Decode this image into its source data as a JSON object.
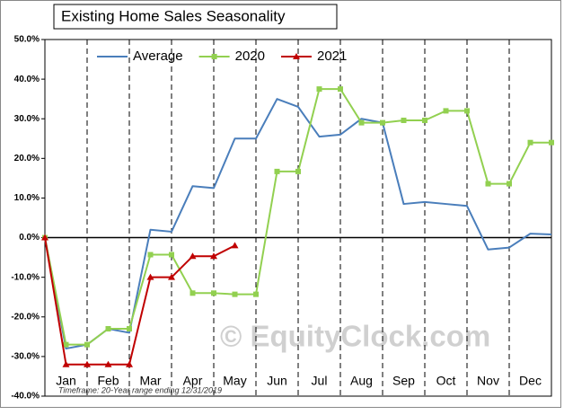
{
  "chart_data": {
    "type": "line",
    "title": "Existing Home Sales Seasonality",
    "annotations": [
      "Timeframe: 20-Year range ending 12/31/2019",
      "© EquityClock.com"
    ],
    "x": [
      0,
      0.5,
      1,
      1.5,
      2,
      2.5,
      3,
      3.5,
      4,
      4.5,
      5,
      5.5,
      6,
      6.5,
      7,
      7.5,
      8,
      8.5,
      9,
      9.5,
      10,
      10.5,
      11,
      11.5,
      12
    ],
    "xlim": [
      0,
      12
    ],
    "xticks": [
      {
        "value": 0.5,
        "label": "Jan"
      },
      {
        "value": 1.5,
        "label": "Feb"
      },
      {
        "value": 2.5,
        "label": "Mar"
      },
      {
        "value": 3.5,
        "label": "Apr"
      },
      {
        "value": 4.5,
        "label": "May"
      },
      {
        "value": 5.5,
        "label": "Jun"
      },
      {
        "value": 6.5,
        "label": "Jul"
      },
      {
        "value": 7.5,
        "label": "Aug"
      },
      {
        "value": 8.5,
        "label": "Sep"
      },
      {
        "value": 9.5,
        "label": "Oct"
      },
      {
        "value": 10.5,
        "label": "Nov"
      },
      {
        "value": 11.5,
        "label": "Dec"
      }
    ],
    "ylim": [
      -40,
      50
    ],
    "yticks": [
      {
        "value": -40,
        "label": "-40.0%"
      },
      {
        "value": -30,
        "label": "-30.0%"
      },
      {
        "value": -20,
        "label": "-20.0%"
      },
      {
        "value": -10,
        "label": "-10.0%"
      },
      {
        "value": 0,
        "label": "0.0%"
      },
      {
        "value": 10,
        "label": "10.0%"
      },
      {
        "value": 20,
        "label": "20.0%"
      },
      {
        "value": 30,
        "label": "30.0%"
      },
      {
        "value": 40,
        "label": "40.0%"
      },
      {
        "value": 50,
        "label": "50.0%"
      }
    ],
    "grid": true,
    "legend": "top",
    "series": [
      {
        "name": "Average",
        "color": "#4a7ebb",
        "marker": "none",
        "values": [
          0,
          -28,
          -27,
          -23,
          -24,
          2,
          1.5,
          13,
          12.5,
          25,
          25,
          35,
          33,
          25.5,
          26,
          30,
          29,
          8.5,
          9,
          8.5,
          8,
          -3,
          -2.5,
          1,
          0.8
        ]
      },
      {
        "name": "2020",
        "color": "#92d050",
        "marker": "square",
        "values": [
          0,
          -27,
          -27,
          -23,
          -23,
          -4.3,
          -4.3,
          -14,
          -14,
          -14.3,
          -14.3,
          16.7,
          16.7,
          37.5,
          37.5,
          29,
          29,
          29.6,
          29.6,
          32,
          32,
          13.6,
          13.6,
          24,
          24
        ]
      },
      {
        "name": "2021",
        "color": "#c00000",
        "marker": "triangle",
        "values": [
          0,
          -32,
          -32,
          -32,
          -32,
          -10,
          -10,
          -4.7,
          -4.7,
          -2,
          null,
          null,
          null,
          null,
          null,
          null,
          null,
          null,
          null,
          null,
          null,
          null,
          null,
          null,
          null
        ]
      }
    ]
  }
}
